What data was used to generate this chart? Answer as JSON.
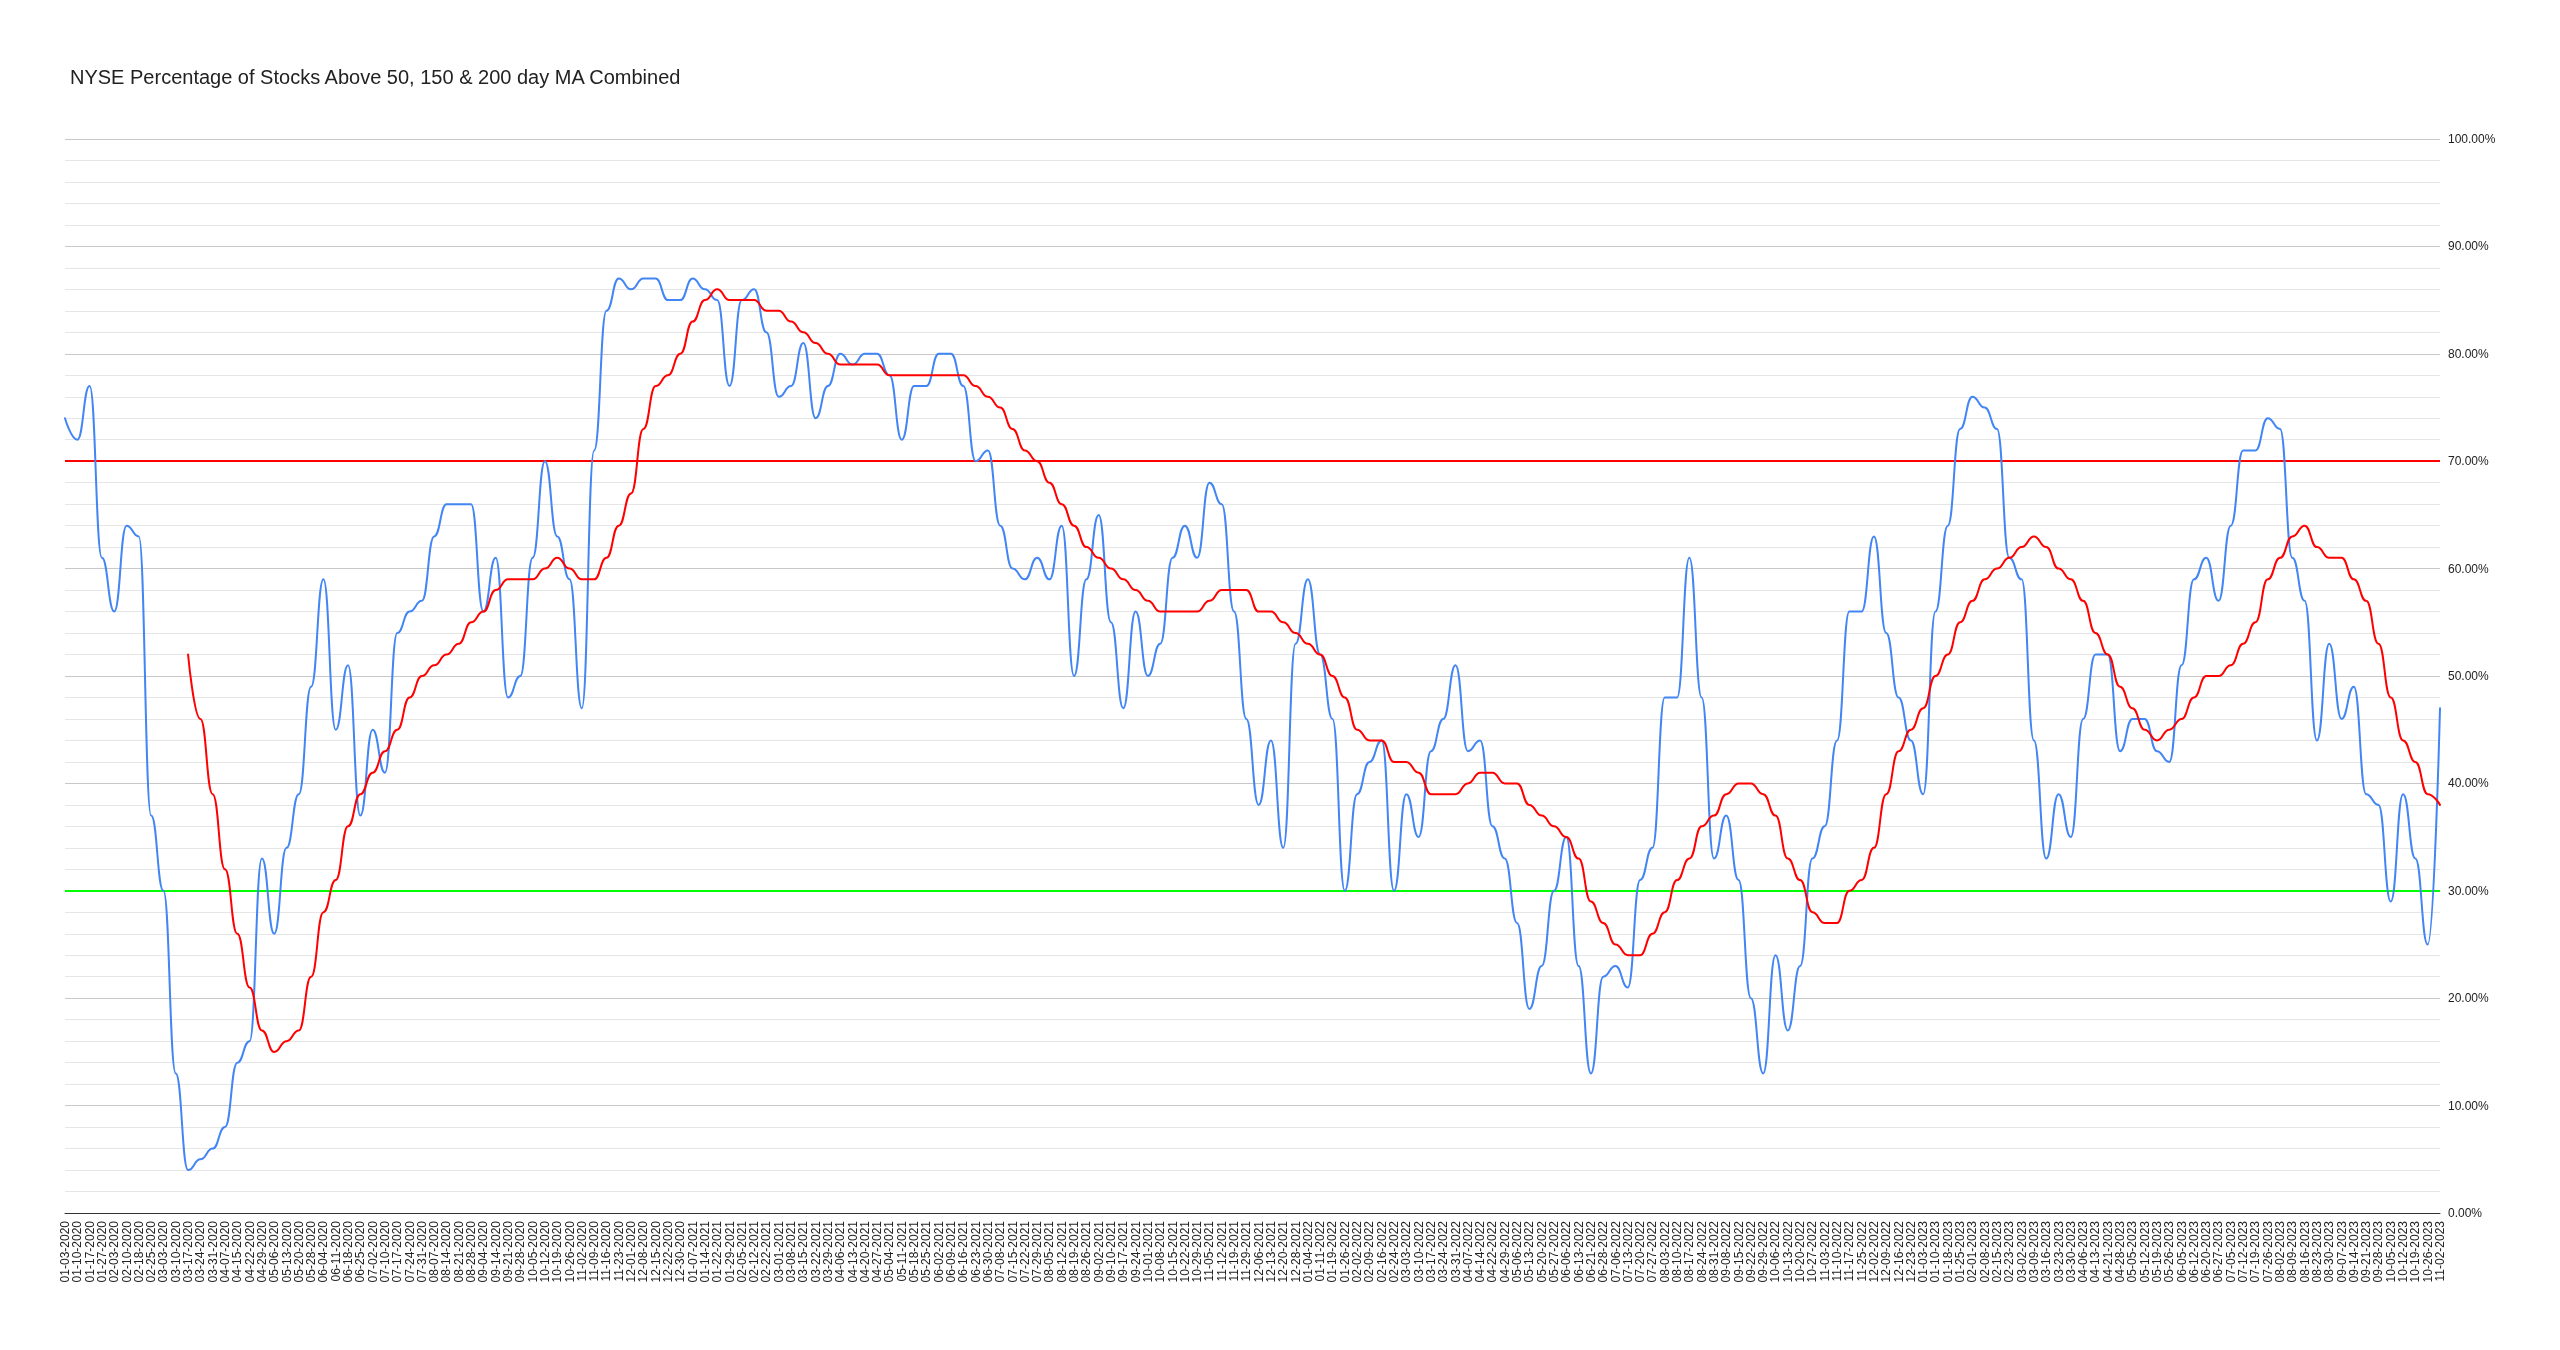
{
  "chart_data": {
    "type": "line",
    "title": "NYSE Percentage of Stocks Above 50, 150 & 200 day MA Combined",
    "categories": [
      "01-03-2020",
      "01-10-2020",
      "01-17-2020",
      "01-27-2020",
      "02-03-2020",
      "02-10-2020",
      "02-18-2020",
      "02-25-2020",
      "03-03-2020",
      "03-10-2020",
      "03-17-2020",
      "03-24-2020",
      "03-31-2020",
      "04-07-2020",
      "04-15-2020",
      "04-22-2020",
      "04-29-2020",
      "05-06-2020",
      "05-13-2020",
      "05-20-2020",
      "05-28-2020",
      "06-04-2020",
      "06-11-2020",
      "06-18-2020",
      "06-25-2020",
      "07-02-2020",
      "07-10-2020",
      "07-17-2020",
      "07-24-2020",
      "07-31-2020",
      "08-07-2020",
      "08-14-2020",
      "08-21-2020",
      "08-28-2020",
      "09-04-2020",
      "09-14-2020",
      "09-21-2020",
      "09-28-2020",
      "10-05-2020",
      "10-12-2020",
      "10-19-2020",
      "10-26-2020",
      "11-02-2020",
      "11-09-2020",
      "11-16-2020",
      "11-23-2020",
      "12-01-2020",
      "12-08-2020",
      "12-15-2020",
      "12-22-2020",
      "12-30-2020",
      "01-07-2021",
      "01-14-2021",
      "01-22-2021",
      "01-29-2021",
      "02-05-2021",
      "02-12-2021",
      "02-22-2021",
      "03-01-2021",
      "03-08-2021",
      "03-15-2021",
      "03-22-2021",
      "03-29-2021",
      "04-06-2021",
      "04-13-2021",
      "04-20-2021",
      "04-27-2021",
      "05-04-2021",
      "05-11-2021",
      "05-18-2021",
      "05-25-2021",
      "06-02-2021",
      "06-09-2021",
      "06-16-2021",
      "06-23-2021",
      "06-30-2021",
      "07-08-2021",
      "07-15-2021",
      "07-22-2021",
      "07-29-2021",
      "08-05-2021",
      "08-12-2021",
      "08-19-2021",
      "08-26-2021",
      "09-02-2021",
      "09-10-2021",
      "09-17-2021",
      "09-24-2021",
      "10-01-2021",
      "10-08-2021",
      "10-15-2021",
      "10-22-2021",
      "10-29-2021",
      "11-05-2021",
      "11-12-2021",
      "11-19-2021",
      "11-29-2021",
      "12-06-2021",
      "12-13-2021",
      "12-20-2021",
      "12-28-2021",
      "01-04-2022",
      "01-11-2022",
      "01-19-2022",
      "01-26-2022",
      "02-02-2022",
      "02-09-2022",
      "02-16-2022",
      "02-24-2022",
      "03-03-2022",
      "03-10-2022",
      "03-17-2022",
      "03-24-2022",
      "03-31-2022",
      "04-07-2022",
      "04-14-2022",
      "04-22-2022",
      "04-29-2022",
      "05-06-2022",
      "05-13-2022",
      "05-20-2022",
      "05-27-2022",
      "06-06-2022",
      "06-13-2022",
      "06-21-2022",
      "06-28-2022",
      "07-06-2022",
      "07-13-2022",
      "07-20-2022",
      "07-27-2022",
      "08-03-2022",
      "08-10-2022",
      "08-17-2022",
      "08-24-2022",
      "08-31-2022",
      "09-08-2022",
      "09-15-2022",
      "09-22-2022",
      "09-29-2022",
      "10-06-2022",
      "10-13-2022",
      "10-20-2022",
      "10-27-2022",
      "11-03-2022",
      "11-10-2022",
      "11-17-2022",
      "11-25-2022",
      "12-02-2022",
      "12-09-2022",
      "12-16-2022",
      "12-23-2022",
      "01-03-2023",
      "01-10-2023",
      "01-18-2023",
      "01-25-2023",
      "02-01-2023",
      "02-08-2023",
      "02-15-2023",
      "02-23-2023",
      "03-02-2023",
      "03-09-2023",
      "03-16-2023",
      "03-23-2023",
      "03-30-2023",
      "04-06-2023",
      "04-13-2023",
      "04-21-2023",
      "04-28-2023",
      "05-05-2023",
      "05-12-2023",
      "05-19-2023",
      "05-26-2023",
      "06-05-2023",
      "06-12-2023",
      "06-20-2023",
      "06-27-2023",
      "07-05-2023",
      "07-12-2023",
      "07-19-2023",
      "07-26-2023",
      "08-02-2023",
      "08-09-2023",
      "08-16-2023",
      "08-23-2023",
      "08-30-2023",
      "09-07-2023",
      "09-14-2023",
      "09-21-2023",
      "09-28-2023",
      "10-05-2023",
      "10-12-2023",
      "10-19-2023",
      "10-26-2023",
      "11-02-2023"
    ],
    "series": [
      {
        "color": "#4285f4",
        "values": [
          74,
          72,
          77,
          61,
          56,
          64,
          63,
          37,
          30,
          13,
          4,
          5,
          6,
          8,
          14,
          16,
          33,
          26,
          34,
          39,
          49,
          59,
          45,
          51,
          37,
          45,
          41,
          54,
          56,
          57,
          63,
          66,
          66,
          66,
          56,
          61,
          48,
          50,
          61,
          70,
          63,
          59,
          47,
          71,
          84,
          87,
          86,
          87,
          87,
          85,
          85,
          87,
          86,
          85,
          77,
          85,
          86,
          82,
          76,
          77,
          81,
          74,
          77,
          80,
          79,
          80,
          80,
          78,
          72,
          77,
          77,
          80,
          80,
          77,
          70,
          71,
          64,
          60,
          59,
          61,
          59,
          64,
          50,
          59,
          65,
          55,
          47,
          56,
          50,
          53,
          61,
          64,
          61,
          68,
          66,
          56,
          46,
          38,
          44,
          34,
          53,
          59,
          52,
          46,
          30,
          39,
          42,
          44,
          30,
          39,
          35,
          43,
          46,
          51,
          43,
          44,
          36,
          33,
          27,
          19,
          23,
          30,
          35,
          23,
          13,
          22,
          23,
          21,
          31,
          34,
          48,
          48,
          61,
          48,
          33,
          37,
          31,
          20,
          13,
          24,
          17,
          23,
          33,
          36,
          44,
          56,
          56,
          63,
          54,
          48,
          44,
          39,
          56,
          64,
          73,
          76,
          75,
          73,
          61,
          59,
          44,
          33,
          39,
          35,
          46,
          52,
          52,
          43,
          46,
          46,
          43,
          42,
          51,
          59,
          61,
          57,
          64,
          71,
          71,
          74,
          73,
          61,
          57,
          44,
          53,
          46,
          49,
          39,
          38,
          29,
          39,
          33,
          25,
          47
        ]
      },
      {
        "color": "#ff0000",
        "values": [
          null,
          null,
          null,
          null,
          null,
          null,
          null,
          null,
          null,
          null,
          52,
          46,
          39,
          32,
          26,
          21,
          17,
          15,
          16,
          17,
          22,
          28,
          31,
          36,
          39,
          41,
          43,
          45,
          48,
          50,
          51,
          52,
          53,
          55,
          56,
          58,
          59,
          59,
          59,
          60,
          61,
          60,
          59,
          59,
          61,
          64,
          67,
          73,
          77,
          78,
          80,
          83,
          85,
          86,
          85,
          85,
          85,
          84,
          84,
          83,
          82,
          81,
          80,
          79,
          79,
          79,
          79,
          78,
          78,
          78,
          78,
          78,
          78,
          78,
          77,
          76,
          75,
          73,
          71,
          70,
          68,
          66,
          64,
          62,
          61,
          60,
          59,
          58,
          57,
          56,
          56,
          56,
          56,
          57,
          58,
          58,
          58,
          56,
          56,
          55,
          54,
          53,
          52,
          50,
          48,
          45,
          44,
          44,
          42,
          42,
          41,
          39,
          39,
          39,
          40,
          41,
          41,
          40,
          40,
          38,
          37,
          36,
          35,
          33,
          29,
          27,
          25,
          24,
          24,
          26,
          28,
          31,
          33,
          36,
          37,
          39,
          40,
          40,
          39,
          37,
          33,
          31,
          28,
          27,
          27,
          30,
          31,
          34,
          39,
          43,
          45,
          47,
          50,
          52,
          55,
          57,
          59,
          60,
          61,
          62,
          63,
          62,
          60,
          59,
          57,
          54,
          52,
          49,
          47,
          45,
          44,
          45,
          46,
          48,
          50,
          50,
          51,
          53,
          55,
          59,
          61,
          63,
          64,
          62,
          61,
          61,
          59,
          57,
          53,
          48,
          44,
          42,
          39,
          38
        ]
      }
    ],
    "ylim": [
      0,
      100
    ],
    "yticks": [
      {
        "value": 0,
        "label": "0.00%"
      },
      {
        "value": 2,
        "label": null
      },
      {
        "value": 4,
        "label": null
      },
      {
        "value": 6,
        "label": null
      },
      {
        "value": 8,
        "label": null
      },
      {
        "value": 10,
        "label": "10.00%"
      },
      {
        "value": 12,
        "label": null
      },
      {
        "value": 14,
        "label": null
      },
      {
        "value": 16,
        "label": null
      },
      {
        "value": 18,
        "label": null
      },
      {
        "value": 20,
        "label": "20.00%"
      },
      {
        "value": 22,
        "label": null
      },
      {
        "value": 24,
        "label": null
      },
      {
        "value": 26,
        "label": null
      },
      {
        "value": 28,
        "label": null
      },
      {
        "value": 30,
        "label": "30.00%"
      },
      {
        "value": 32,
        "label": null
      },
      {
        "value": 34,
        "label": null
      },
      {
        "value": 36,
        "label": null
      },
      {
        "value": 38,
        "label": null
      },
      {
        "value": 40,
        "label": "40.00%"
      },
      {
        "value": 42,
        "label": null
      },
      {
        "value": 44,
        "label": null
      },
      {
        "value": 46,
        "label": null
      },
      {
        "value": 48,
        "label": null
      },
      {
        "value": 50,
        "label": "50.00%"
      },
      {
        "value": 52,
        "label": null
      },
      {
        "value": 54,
        "label": null
      },
      {
        "value": 56,
        "label": null
      },
      {
        "value": 58,
        "label": null
      },
      {
        "value": 60,
        "label": "60.00%"
      },
      {
        "value": 62,
        "label": null
      },
      {
        "value": 64,
        "label": null
      },
      {
        "value": 66,
        "label": null
      },
      {
        "value": 68,
        "label": null
      },
      {
        "value": 70,
        "label": "70.00%"
      },
      {
        "value": 72,
        "label": null
      },
      {
        "value": 74,
        "label": null
      },
      {
        "value": 76,
        "label": null
      },
      {
        "value": 78,
        "label": null
      },
      {
        "value": 80,
        "label": "80.00%"
      },
      {
        "value": 82,
        "label": null
      },
      {
        "value": 84,
        "label": null
      },
      {
        "value": 86,
        "label": null
      },
      {
        "value": 88,
        "label": null
      },
      {
        "value": 90,
        "label": "90.00%"
      },
      {
        "value": 92,
        "label": null
      },
      {
        "value": 94,
        "label": null
      },
      {
        "value": 96,
        "label": null
      },
      {
        "value": 98,
        "label": null
      },
      {
        "value": 100,
        "label": "100.00%"
      }
    ],
    "ref_lines": [
      {
        "axis": "y",
        "value": 70,
        "color": "#ff0000"
      },
      {
        "axis": "y",
        "value": 30,
        "color": "#00ff00"
      }
    ],
    "grid": "y",
    "marker": "none",
    "line_style": "solid"
  }
}
